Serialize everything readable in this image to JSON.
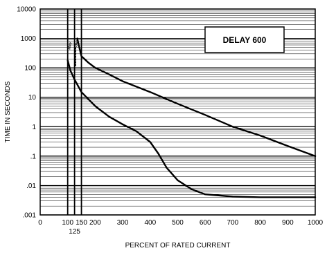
{
  "chart_data": {
    "type": "line",
    "title": "",
    "callout": "DELAY 600",
    "xlabel": "PERCENT OF RATED CURRENT",
    "ylabel": "TIME IN SECONDS",
    "x_scale": "linear",
    "y_scale": "log",
    "xlim": [
      0,
      1000
    ],
    "ylim": [
      0.001,
      10000
    ],
    "x_ticks": [
      {
        "value": 0,
        "label": "0"
      },
      {
        "value": 100,
        "label": "100"
      },
      {
        "value": 150,
        "label": "150"
      },
      {
        "value": 200,
        "label": "200"
      },
      {
        "value": 300,
        "label": "300"
      },
      {
        "value": 400,
        "label": "400"
      },
      {
        "value": 500,
        "label": "500"
      },
      {
        "value": 600,
        "label": "600"
      },
      {
        "value": 700,
        "label": "700"
      },
      {
        "value": 800,
        "label": "800"
      },
      {
        "value": 900,
        "label": "900"
      },
      {
        "value": 1000,
        "label": "1000"
      }
    ],
    "x_extra_label": {
      "value": 125,
      "label": "125"
    },
    "y_ticks": [
      {
        "value": 0.001,
        "label": ".001"
      },
      {
        "value": 0.01,
        "label": ".01"
      },
      {
        "value": 0.1,
        "label": ".1"
      },
      {
        "value": 1,
        "label": "1"
      },
      {
        "value": 10,
        "label": "10"
      },
      {
        "value": 100,
        "label": "100"
      },
      {
        "value": 1000,
        "label": "1000"
      },
      {
        "value": 10000,
        "label": "10000"
      }
    ],
    "vertical_lines": [
      {
        "name": "line-100",
        "x": 100
      },
      {
        "name": "line-125",
        "x": 125
      },
      {
        "name": "line-150",
        "x": 150
      }
    ],
    "vertical_labels": [
      {
        "name": "may-label",
        "x": 112,
        "y": 550,
        "text": "MAY"
      },
      {
        "name": "trip-label",
        "x": 137,
        "y": 650,
        "text": "TRIP"
      }
    ],
    "grid": true,
    "series": [
      {
        "name": "upper",
        "x": [
          135,
          140,
          150,
          175,
          200,
          250,
          300,
          400,
          500,
          600,
          700,
          800,
          900,
          1000
        ],
        "y": [
          1000,
          600,
          250,
          150,
          100,
          60,
          35,
          15,
          6,
          2.5,
          1,
          0.5,
          0.22,
          0.1
        ]
      },
      {
        "name": "lower",
        "x": [
          100,
          110,
          125,
          150,
          200,
          250,
          300,
          350,
          400,
          430,
          460,
          500,
          550,
          600,
          700,
          800,
          1000
        ],
        "y": [
          180,
          80,
          40,
          15,
          5,
          2.2,
          1.2,
          0.7,
          0.3,
          0.12,
          0.04,
          0.015,
          0.0075,
          0.005,
          0.0042,
          0.004,
          0.004
        ]
      },
      {
        "name": "dotted-connector",
        "style": "dotted",
        "x": [
          128,
          128
        ],
        "y": [
          120,
          500
        ]
      }
    ]
  }
}
